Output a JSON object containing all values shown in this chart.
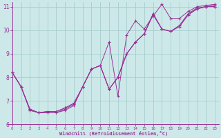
{
  "xlabel": "Windchill (Refroidissement éolien,°C)",
  "xlim": [
    -0.5,
    23.5
  ],
  "ylim": [
    6,
    11.2
  ],
  "yticks": [
    6,
    7,
    8,
    9,
    10,
    11
  ],
  "xticks": [
    0,
    1,
    2,
    3,
    4,
    5,
    6,
    7,
    8,
    9,
    10,
    11,
    12,
    13,
    14,
    15,
    16,
    17,
    18,
    19,
    20,
    21,
    22,
    23
  ],
  "bg_color": "#cde8e8",
  "grid_color": "#a0c8c8",
  "line_color": "#993399",
  "lines": [
    [
      8.2,
      7.6,
      6.6,
      6.5,
      6.5,
      6.5,
      6.6,
      6.8,
      7.6,
      8.35,
      8.5,
      9.5,
      7.2,
      9.8,
      10.4,
      10.05,
      10.6,
      11.1,
      10.5,
      10.5,
      10.8,
      11.0,
      11.05,
      11.1
    ],
    [
      8.2,
      7.6,
      6.6,
      6.5,
      6.5,
      6.5,
      6.65,
      6.85,
      7.6,
      8.35,
      8.5,
      7.5,
      8.0,
      9.0,
      9.5,
      9.85,
      10.7,
      10.05,
      9.95,
      10.2,
      10.7,
      10.95,
      11.0,
      11.05
    ],
    [
      8.2,
      7.6,
      6.65,
      6.5,
      6.55,
      6.55,
      6.7,
      6.9,
      7.6,
      8.35,
      8.5,
      7.5,
      8.0,
      9.0,
      9.5,
      9.85,
      10.7,
      10.05,
      9.95,
      10.2,
      10.7,
      10.9,
      11.0,
      11.0
    ],
    [
      8.2,
      7.6,
      6.65,
      6.5,
      6.55,
      6.55,
      6.7,
      6.9,
      7.6,
      8.35,
      8.5,
      7.5,
      8.0,
      9.0,
      9.5,
      9.85,
      10.65,
      10.05,
      9.95,
      10.15,
      10.65,
      10.9,
      11.0,
      11.0
    ]
  ]
}
